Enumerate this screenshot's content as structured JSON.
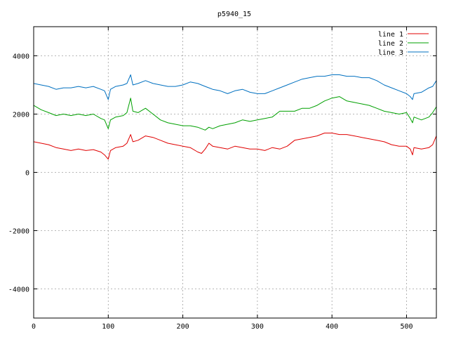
{
  "chart_data": {
    "type": "line",
    "title": "p5940_15",
    "xlabel": "",
    "ylabel": "",
    "xlim": [
      0,
      540
    ],
    "ylim": [
      -5000,
      5000
    ],
    "x_ticks": [
      0,
      100,
      200,
      300,
      400,
      500
    ],
    "y_ticks": [
      -4000,
      -2000,
      0,
      2000,
      4000
    ],
    "grid": true,
    "legend_position": "top-right",
    "series": [
      {
        "name": "line 1",
        "color": "#e00000",
        "x": [
          0,
          10,
          20,
          30,
          40,
          50,
          60,
          70,
          80,
          90,
          95,
          100,
          103,
          110,
          120,
          125,
          130,
          133,
          140,
          150,
          160,
          170,
          180,
          190,
          200,
          210,
          220,
          225,
          230,
          235,
          240,
          250,
          260,
          270,
          280,
          290,
          300,
          310,
          320,
          330,
          340,
          350,
          360,
          370,
          380,
          390,
          400,
          410,
          420,
          430,
          440,
          450,
          460,
          470,
          480,
          490,
          500,
          505,
          508,
          510,
          520,
          530,
          535,
          540
        ],
        "y": [
          1050,
          1000,
          950,
          850,
          800,
          750,
          800,
          750,
          780,
          700,
          600,
          450,
          750,
          850,
          900,
          1000,
          1300,
          1050,
          1100,
          1250,
          1200,
          1100,
          1000,
          950,
          900,
          850,
          700,
          650,
          800,
          1000,
          900,
          850,
          800,
          900,
          850,
          800,
          800,
          750,
          850,
          800,
          900,
          1100,
          1150,
          1200,
          1250,
          1350,
          1350,
          1300,
          1300,
          1250,
          1200,
          1150,
          1100,
          1050,
          950,
          900,
          900,
          800,
          600,
          850,
          800,
          850,
          950,
          1250
        ]
      },
      {
        "name": "line 2",
        "color": "#00a000",
        "x": [
          0,
          10,
          20,
          30,
          40,
          50,
          60,
          70,
          80,
          90,
          95,
          100,
          103,
          110,
          120,
          125,
          130,
          133,
          140,
          150,
          160,
          170,
          180,
          190,
          200,
          210,
          220,
          225,
          230,
          235,
          240,
          250,
          260,
          270,
          280,
          290,
          300,
          310,
          320,
          330,
          340,
          350,
          360,
          370,
          380,
          390,
          400,
          410,
          420,
          430,
          440,
          450,
          460,
          470,
          480,
          490,
          500,
          505,
          508,
          510,
          520,
          530,
          535,
          540
        ],
        "y": [
          2300,
          2150,
          2050,
          1950,
          2000,
          1950,
          2000,
          1950,
          2000,
          1850,
          1800,
          1500,
          1800,
          1900,
          1950,
          2050,
          2550,
          2100,
          2050,
          2200,
          2000,
          1800,
          1700,
          1650,
          1600,
          1600,
          1550,
          1500,
          1450,
          1550,
          1500,
          1600,
          1650,
          1700,
          1800,
          1750,
          1800,
          1850,
          1900,
          2100,
          2100,
          2100,
          2200,
          2200,
          2300,
          2450,
          2550,
          2600,
          2450,
          2400,
          2350,
          2300,
          2200,
          2100,
          2050,
          2000,
          2050,
          1850,
          1700,
          1900,
          1800,
          1900,
          2050,
          2250
        ]
      },
      {
        "name": "line 3",
        "color": "#0070c0",
        "x": [
          0,
          10,
          20,
          30,
          40,
          50,
          60,
          70,
          80,
          90,
          95,
          100,
          103,
          110,
          120,
          125,
          130,
          133,
          140,
          150,
          160,
          170,
          180,
          190,
          200,
          210,
          220,
          225,
          230,
          235,
          240,
          250,
          260,
          270,
          280,
          290,
          300,
          310,
          320,
          330,
          340,
          350,
          360,
          370,
          380,
          390,
          400,
          410,
          420,
          430,
          440,
          450,
          460,
          470,
          480,
          490,
          500,
          505,
          508,
          510,
          520,
          530,
          535,
          540
        ],
        "y": [
          3050,
          3000,
          2950,
          2850,
          2900,
          2900,
          2950,
          2900,
          2950,
          2850,
          2800,
          2500,
          2850,
          2950,
          3000,
          3050,
          3350,
          3000,
          3050,
          3150,
          3050,
          3000,
          2950,
          2950,
          3000,
          3100,
          3050,
          3000,
          2950,
          2900,
          2850,
          2800,
          2700,
          2800,
          2850,
          2750,
          2700,
          2700,
          2800,
          2900,
          3000,
          3100,
          3200,
          3250,
          3300,
          3300,
          3350,
          3350,
          3300,
          3300,
          3250,
          3250,
          3150,
          3000,
          2900,
          2800,
          2700,
          2600,
          2500,
          2700,
          2750,
          2900,
          2950,
          3150
        ]
      }
    ]
  }
}
